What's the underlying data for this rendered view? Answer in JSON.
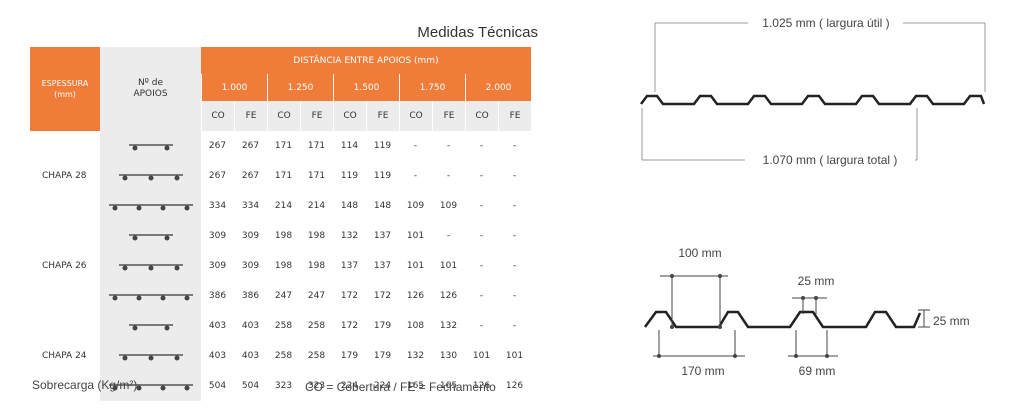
{
  "title": "Medidas Técnicas",
  "header": {
    "espessura": [
      "ESPESSURA",
      "(mm)"
    ],
    "apoios": [
      "Nº de",
      "APOIOS"
    ],
    "distancia": "DISTÂNCIA ENTRE APOIOS (mm)",
    "spans": [
      "1.000",
      "1.250",
      "1.500",
      "1.750",
      "2.000"
    ],
    "sub": [
      "CO",
      "FE",
      "CO",
      "FE",
      "CO",
      "FE",
      "CO",
      "FE",
      "CO",
      "FE"
    ]
  },
  "groups": [
    {
      "label": "CHAPA 28",
      "rows": [
        {
          "supports": 2,
          "values": [
            "267",
            "267",
            "171",
            "171",
            "114",
            "119",
            "-",
            "-",
            "-",
            "-"
          ]
        },
        {
          "supports": 3,
          "values": [
            "267",
            "267",
            "171",
            "171",
            "119",
            "119",
            "-",
            "-",
            "-",
            "-"
          ]
        },
        {
          "supports": 4,
          "values": [
            "334",
            "334",
            "214",
            "214",
            "148",
            "148",
            "109",
            "109",
            "-",
            "-"
          ]
        }
      ]
    },
    {
      "label": "CHAPA 26",
      "rows": [
        {
          "supports": 2,
          "values": [
            "309",
            "309",
            "198",
            "198",
            "132",
            "137",
            "101",
            "-",
            "-",
            "-"
          ]
        },
        {
          "supports": 3,
          "values": [
            "309",
            "309",
            "198",
            "198",
            "137",
            "137",
            "101",
            "101",
            "-",
            "-"
          ]
        },
        {
          "supports": 4,
          "values": [
            "386",
            "386",
            "247",
            "247",
            "172",
            "172",
            "126",
            "126",
            "-",
            "-"
          ]
        }
      ]
    },
    {
      "label": "CHAPA 24",
      "rows": [
        {
          "supports": 2,
          "values": [
            "403",
            "403",
            "258",
            "258",
            "172",
            "179",
            "108",
            "132",
            "-",
            "-"
          ]
        },
        {
          "supports": 3,
          "values": [
            "403",
            "403",
            "258",
            "258",
            "179",
            "179",
            "132",
            "130",
            "101",
            "101"
          ]
        },
        {
          "supports": 4,
          "values": [
            "504",
            "504",
            "323",
            "323",
            "224",
            "224",
            "165",
            "165",
            "126",
            "126"
          ]
        }
      ]
    }
  ],
  "footer": {
    "left": "Sobrecarga (Kg/m²)",
    "right": "CO  =  Cobertura / FE = Fechamento"
  },
  "diagram": {
    "largura_util": "1.025 mm ( largura útil )",
    "largura_total": "1.070 mm ( largura total )",
    "dim_100": "100 mm",
    "dim_25_top": "25 mm",
    "dim_25_side": "25 mm",
    "dim_170": "170 mm",
    "dim_69": "69 mm"
  }
}
